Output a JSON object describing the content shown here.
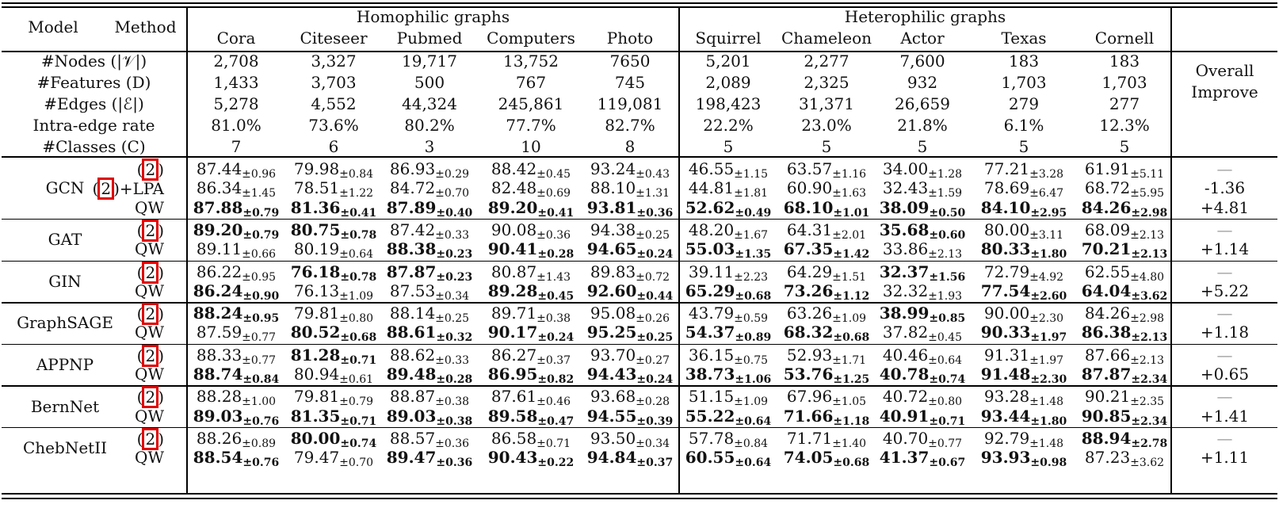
{
  "header": {
    "model": "Model",
    "method": "Method",
    "homophilic": "Homophilic graphs",
    "heterophilic": "Heterophilic graphs",
    "overall": "Overall",
    "improve": "Improve",
    "datasets": [
      "Cora",
      "Citeseer",
      "Pubmed",
      "Computers",
      "Photo",
      "Squirrel",
      "Chameleon",
      "Actor",
      "Texas",
      "Cornell"
    ]
  },
  "stats": [
    {
      "label": "#Nodes (|𝒱|)",
      "values": [
        "2,708",
        "3,327",
        "19,717",
        "13,752",
        "7650",
        "5,201",
        "2,277",
        "7,600",
        "183",
        "183"
      ]
    },
    {
      "label": "#Features (D)",
      "values": [
        "1,433",
        "3,703",
        "500",
        "767",
        "745",
        "2,089",
        "2,325",
        "932",
        "1,703",
        "1,703"
      ]
    },
    {
      "label": "#Edges (|ℰ|)",
      "values": [
        "5,278",
        "4,552",
        "44,324",
        "245,861",
        "119,081",
        "198,423",
        "31,371",
        "26,659",
        "279",
        "277"
      ]
    },
    {
      "label": "Intra-edge rate",
      "values": [
        "81.0%",
        "73.6%",
        "80.2%",
        "77.7%",
        "82.7%",
        "22.2%",
        "23.0%",
        "21.8%",
        "6.1%",
        "12.3%"
      ]
    },
    {
      "label": "#Classes (C)",
      "values": [
        "7",
        "6",
        "3",
        "10",
        "8",
        "5",
        "5",
        "5",
        "5",
        "5"
      ]
    }
  ],
  "groups": [
    {
      "model": "GCN",
      "rows": [
        {
          "method": "(2)",
          "boxed": true,
          "suffix": "",
          "improve": "—",
          "cells": [
            [
              "87.44",
              "±0.96",
              0
            ],
            [
              "79.98",
              "±0.84",
              0
            ],
            [
              "86.93",
              "±0.29",
              0
            ],
            [
              "88.42",
              "±0.45",
              0
            ],
            [
              "93.24",
              "±0.43",
              0
            ],
            [
              "46.55",
              "±1.15",
              0
            ],
            [
              "63.57",
              "±1.16",
              0
            ],
            [
              "34.00",
              "±1.28",
              0
            ],
            [
              "77.21",
              "±3.28",
              0
            ],
            [
              "61.91",
              "±5.11",
              0
            ]
          ]
        },
        {
          "method": "(2)",
          "boxed": true,
          "suffix": "+LPA",
          "improve": "-1.36",
          "cells": [
            [
              "86.34",
              "±1.45",
              0
            ],
            [
              "78.51",
              "±1.22",
              0
            ],
            [
              "84.72",
              "±0.70",
              0
            ],
            [
              "82.48",
              "±0.69",
              0
            ],
            [
              "88.10",
              "±1.31",
              0
            ],
            [
              "44.81",
              "±1.81",
              0
            ],
            [
              "60.90",
              "±1.63",
              0
            ],
            [
              "32.43",
              "±1.59",
              0
            ],
            [
              "78.69",
              "±6.47",
              0
            ],
            [
              "68.72",
              "±5.95",
              0
            ]
          ]
        },
        {
          "method": "QW",
          "boxed": false,
          "suffix": "",
          "improve": "+4.81",
          "cells": [
            [
              "87.88",
              "±0.79",
              1
            ],
            [
              "81.36",
              "±0.41",
              1
            ],
            [
              "87.89",
              "±0.40",
              1
            ],
            [
              "89.20",
              "±0.41",
              1
            ],
            [
              "93.81",
              "±0.36",
              1
            ],
            [
              "52.62",
              "±0.49",
              1
            ],
            [
              "68.10",
              "±1.01",
              1
            ],
            [
              "38.09",
              "±0.50",
              1
            ],
            [
              "84.10",
              "±2.95",
              1
            ],
            [
              "84.26",
              "±2.98",
              1
            ]
          ]
        }
      ]
    },
    {
      "model": "GAT",
      "rows": [
        {
          "method": "(2)",
          "boxed": true,
          "suffix": "",
          "improve": "—",
          "cells": [
            [
              "89.20",
              "±0.79",
              1
            ],
            [
              "80.75",
              "±0.78",
              1
            ],
            [
              "87.42",
              "±0.33",
              0
            ],
            [
              "90.08",
              "±0.36",
              0
            ],
            [
              "94.38",
              "±0.25",
              0
            ],
            [
              "48.20",
              "±1.67",
              0
            ],
            [
              "64.31",
              "±2.01",
              0
            ],
            [
              "35.68",
              "±0.60",
              1
            ],
            [
              "80.00",
              "±3.11",
              0
            ],
            [
              "68.09",
              "±2.13",
              0
            ]
          ]
        },
        {
          "method": "QW",
          "boxed": false,
          "suffix": "",
          "improve": "+1.14",
          "cells": [
            [
              "89.11",
              "±0.66",
              0
            ],
            [
              "80.19",
              "±0.64",
              0
            ],
            [
              "88.38",
              "±0.23",
              1
            ],
            [
              "90.41",
              "±0.28",
              1
            ],
            [
              "94.65",
              "±0.24",
              1
            ],
            [
              "55.03",
              "±1.35",
              1
            ],
            [
              "67.35",
              "±1.42",
              1
            ],
            [
              "33.86",
              "±2.13",
              0
            ],
            [
              "80.33",
              "±1.80",
              1
            ],
            [
              "70.21",
              "±2.13",
              1
            ]
          ]
        }
      ]
    },
    {
      "model": "GIN",
      "rows": [
        {
          "method": "(2)",
          "boxed": true,
          "suffix": "",
          "improve": "—",
          "cells": [
            [
              "86.22",
              "±0.95",
              0
            ],
            [
              "76.18",
              "±0.78",
              1
            ],
            [
              "87.87",
              "±0.23",
              1
            ],
            [
              "80.87",
              "±1.43",
              0
            ],
            [
              "89.83",
              "±0.72",
              0
            ],
            [
              "39.11",
              "±2.23",
              0
            ],
            [
              "64.29",
              "±1.51",
              0
            ],
            [
              "32.37",
              "±1.56",
              1
            ],
            [
              "72.79",
              "±4.92",
              0
            ],
            [
              "62.55",
              "±4.80",
              0
            ]
          ]
        },
        {
          "method": "QW",
          "boxed": false,
          "suffix": "",
          "improve": "+5.22",
          "cells": [
            [
              "86.24",
              "±0.90",
              1
            ],
            [
              "76.13",
              "±1.09",
              0
            ],
            [
              "87.53",
              "±0.34",
              0
            ],
            [
              "89.28",
              "±0.45",
              1
            ],
            [
              "92.60",
              "±0.44",
              1
            ],
            [
              "65.29",
              "±0.68",
              1
            ],
            [
              "73.26",
              "±1.12",
              1
            ],
            [
              "32.32",
              "±1.93",
              0
            ],
            [
              "77.54",
              "±2.60",
              1
            ],
            [
              "64.04",
              "±3.62",
              1
            ]
          ]
        }
      ]
    },
    {
      "model": "GraphSAGE",
      "rows": [
        {
          "method": "(2)",
          "boxed": true,
          "suffix": "",
          "improve": "—",
          "cells": [
            [
              "88.24",
              "±0.95",
              1
            ],
            [
              "79.81",
              "±0.80",
              0
            ],
            [
              "88.14",
              "±0.25",
              0
            ],
            [
              "89.71",
              "±0.38",
              0
            ],
            [
              "95.08",
              "±0.26",
              0
            ],
            [
              "43.79",
              "±0.59",
              0
            ],
            [
              "63.26",
              "±1.09",
              0
            ],
            [
              "38.99",
              "±0.85",
              1
            ],
            [
              "90.00",
              "±2.30",
              0
            ],
            [
              "84.26",
              "±2.98",
              0
            ]
          ]
        },
        {
          "method": "QW",
          "boxed": false,
          "suffix": "",
          "improve": "+1.18",
          "cells": [
            [
              "87.59",
              "±0.77",
              0
            ],
            [
              "80.52",
              "±0.68",
              1
            ],
            [
              "88.61",
              "±0.32",
              1
            ],
            [
              "90.17",
              "±0.24",
              1
            ],
            [
              "95.25",
              "±0.25",
              1
            ],
            [
              "54.37",
              "±0.89",
              1
            ],
            [
              "68.32",
              "±0.68",
              1
            ],
            [
              "37.82",
              "±0.45",
              0
            ],
            [
              "90.33",
              "±1.97",
              1
            ],
            [
              "86.38",
              "±2.13",
              1
            ]
          ]
        }
      ]
    },
    {
      "model": "APPNP",
      "rows": [
        {
          "method": "(2)",
          "boxed": true,
          "suffix": "",
          "improve": "—",
          "cells": [
            [
              "88.33",
              "±0.77",
              0
            ],
            [
              "81.28",
              "±0.71",
              1
            ],
            [
              "88.62",
              "±0.33",
              0
            ],
            [
              "86.27",
              "±0.37",
              0
            ],
            [
              "93.70",
              "±0.27",
              0
            ],
            [
              "36.15",
              "±0.75",
              0
            ],
            [
              "52.93",
              "±1.71",
              0
            ],
            [
              "40.46",
              "±0.64",
              0
            ],
            [
              "91.31",
              "±1.97",
              0
            ],
            [
              "87.66",
              "±2.13",
              0
            ]
          ]
        },
        {
          "method": "QW",
          "boxed": false,
          "suffix": "",
          "improve": "+0.65",
          "cells": [
            [
              "88.74",
              "±0.84",
              1
            ],
            [
              "80.94",
              "±0.61",
              0
            ],
            [
              "89.48",
              "±0.28",
              1
            ],
            [
              "86.95",
              "±0.82",
              1
            ],
            [
              "94.43",
              "±0.24",
              1
            ],
            [
              "38.73",
              "±1.06",
              1
            ],
            [
              "53.76",
              "±1.25",
              1
            ],
            [
              "40.78",
              "±0.74",
              1
            ],
            [
              "91.48",
              "±2.30",
              1
            ],
            [
              "87.87",
              "±2.34",
              1
            ]
          ]
        }
      ]
    },
    {
      "model": "BernNet",
      "rows": [
        {
          "method": "(2)",
          "boxed": true,
          "suffix": "",
          "improve": "—",
          "cells": [
            [
              "88.28",
              "±1.00",
              0
            ],
            [
              "79.81",
              "±0.79",
              0
            ],
            [
              "88.87",
              "±0.38",
              0
            ],
            [
              "87.61",
              "±0.46",
              0
            ],
            [
              "93.68",
              "±0.28",
              0
            ],
            [
              "51.15",
              "±1.09",
              0
            ],
            [
              "67.96",
              "±1.05",
              0
            ],
            [
              "40.72",
              "±0.80",
              0
            ],
            [
              "93.28",
              "±1.48",
              0
            ],
            [
              "90.21",
              "±2.35",
              0
            ]
          ]
        },
        {
          "method": "QW",
          "boxed": false,
          "suffix": "",
          "improve": "+1.41",
          "cells": [
            [
              "89.03",
              "±0.76",
              1
            ],
            [
              "81.35",
              "±0.71",
              1
            ],
            [
              "89.03",
              "±0.38",
              1
            ],
            [
              "89.58",
              "±0.47",
              1
            ],
            [
              "94.55",
              "±0.39",
              1
            ],
            [
              "55.22",
              "±0.64",
              1
            ],
            [
              "71.66",
              "±1.18",
              1
            ],
            [
              "40.91",
              "±0.71",
              1
            ],
            [
              "93.44",
              "±1.80",
              1
            ],
            [
              "90.85",
              "±2.34",
              1
            ]
          ]
        }
      ]
    },
    {
      "model": "ChebNetII",
      "rows": [
        {
          "method": "(2)",
          "boxed": true,
          "suffix": "",
          "improve": "—",
          "cells": [
            [
              "88.26",
              "±0.89",
              0
            ],
            [
              "80.00",
              "±0.74",
              1
            ],
            [
              "88.57",
              "±0.36",
              0
            ],
            [
              "86.58",
              "±0.71",
              0
            ],
            [
              "93.50",
              "±0.34",
              0
            ],
            [
              "57.78",
              "±0.84",
              0
            ],
            [
              "71.71",
              "±1.40",
              0
            ],
            [
              "40.70",
              "±0.77",
              0
            ],
            [
              "92.79",
              "±1.48",
              0
            ],
            [
              "88.94",
              "±2.78",
              1
            ]
          ]
        },
        {
          "method": "QW",
          "boxed": false,
          "suffix": "",
          "improve": "+1.11",
          "cells": [
            [
              "88.54",
              "±0.76",
              1
            ],
            [
              "79.47",
              "±0.70",
              0
            ],
            [
              "89.47",
              "±0.36",
              1
            ],
            [
              "90.43",
              "±0.22",
              1
            ],
            [
              "94.84",
              "±0.37",
              1
            ],
            [
              "60.55",
              "±0.64",
              1
            ],
            [
              "74.05",
              "±0.68",
              1
            ],
            [
              "41.37",
              "±0.67",
              1
            ],
            [
              "93.93",
              "±0.98",
              1
            ],
            [
              "87.23",
              "±3.62",
              0
            ]
          ]
        }
      ]
    }
  ],
  "colors": {
    "highlight_box": "#e00000",
    "rule": "#000000"
  }
}
